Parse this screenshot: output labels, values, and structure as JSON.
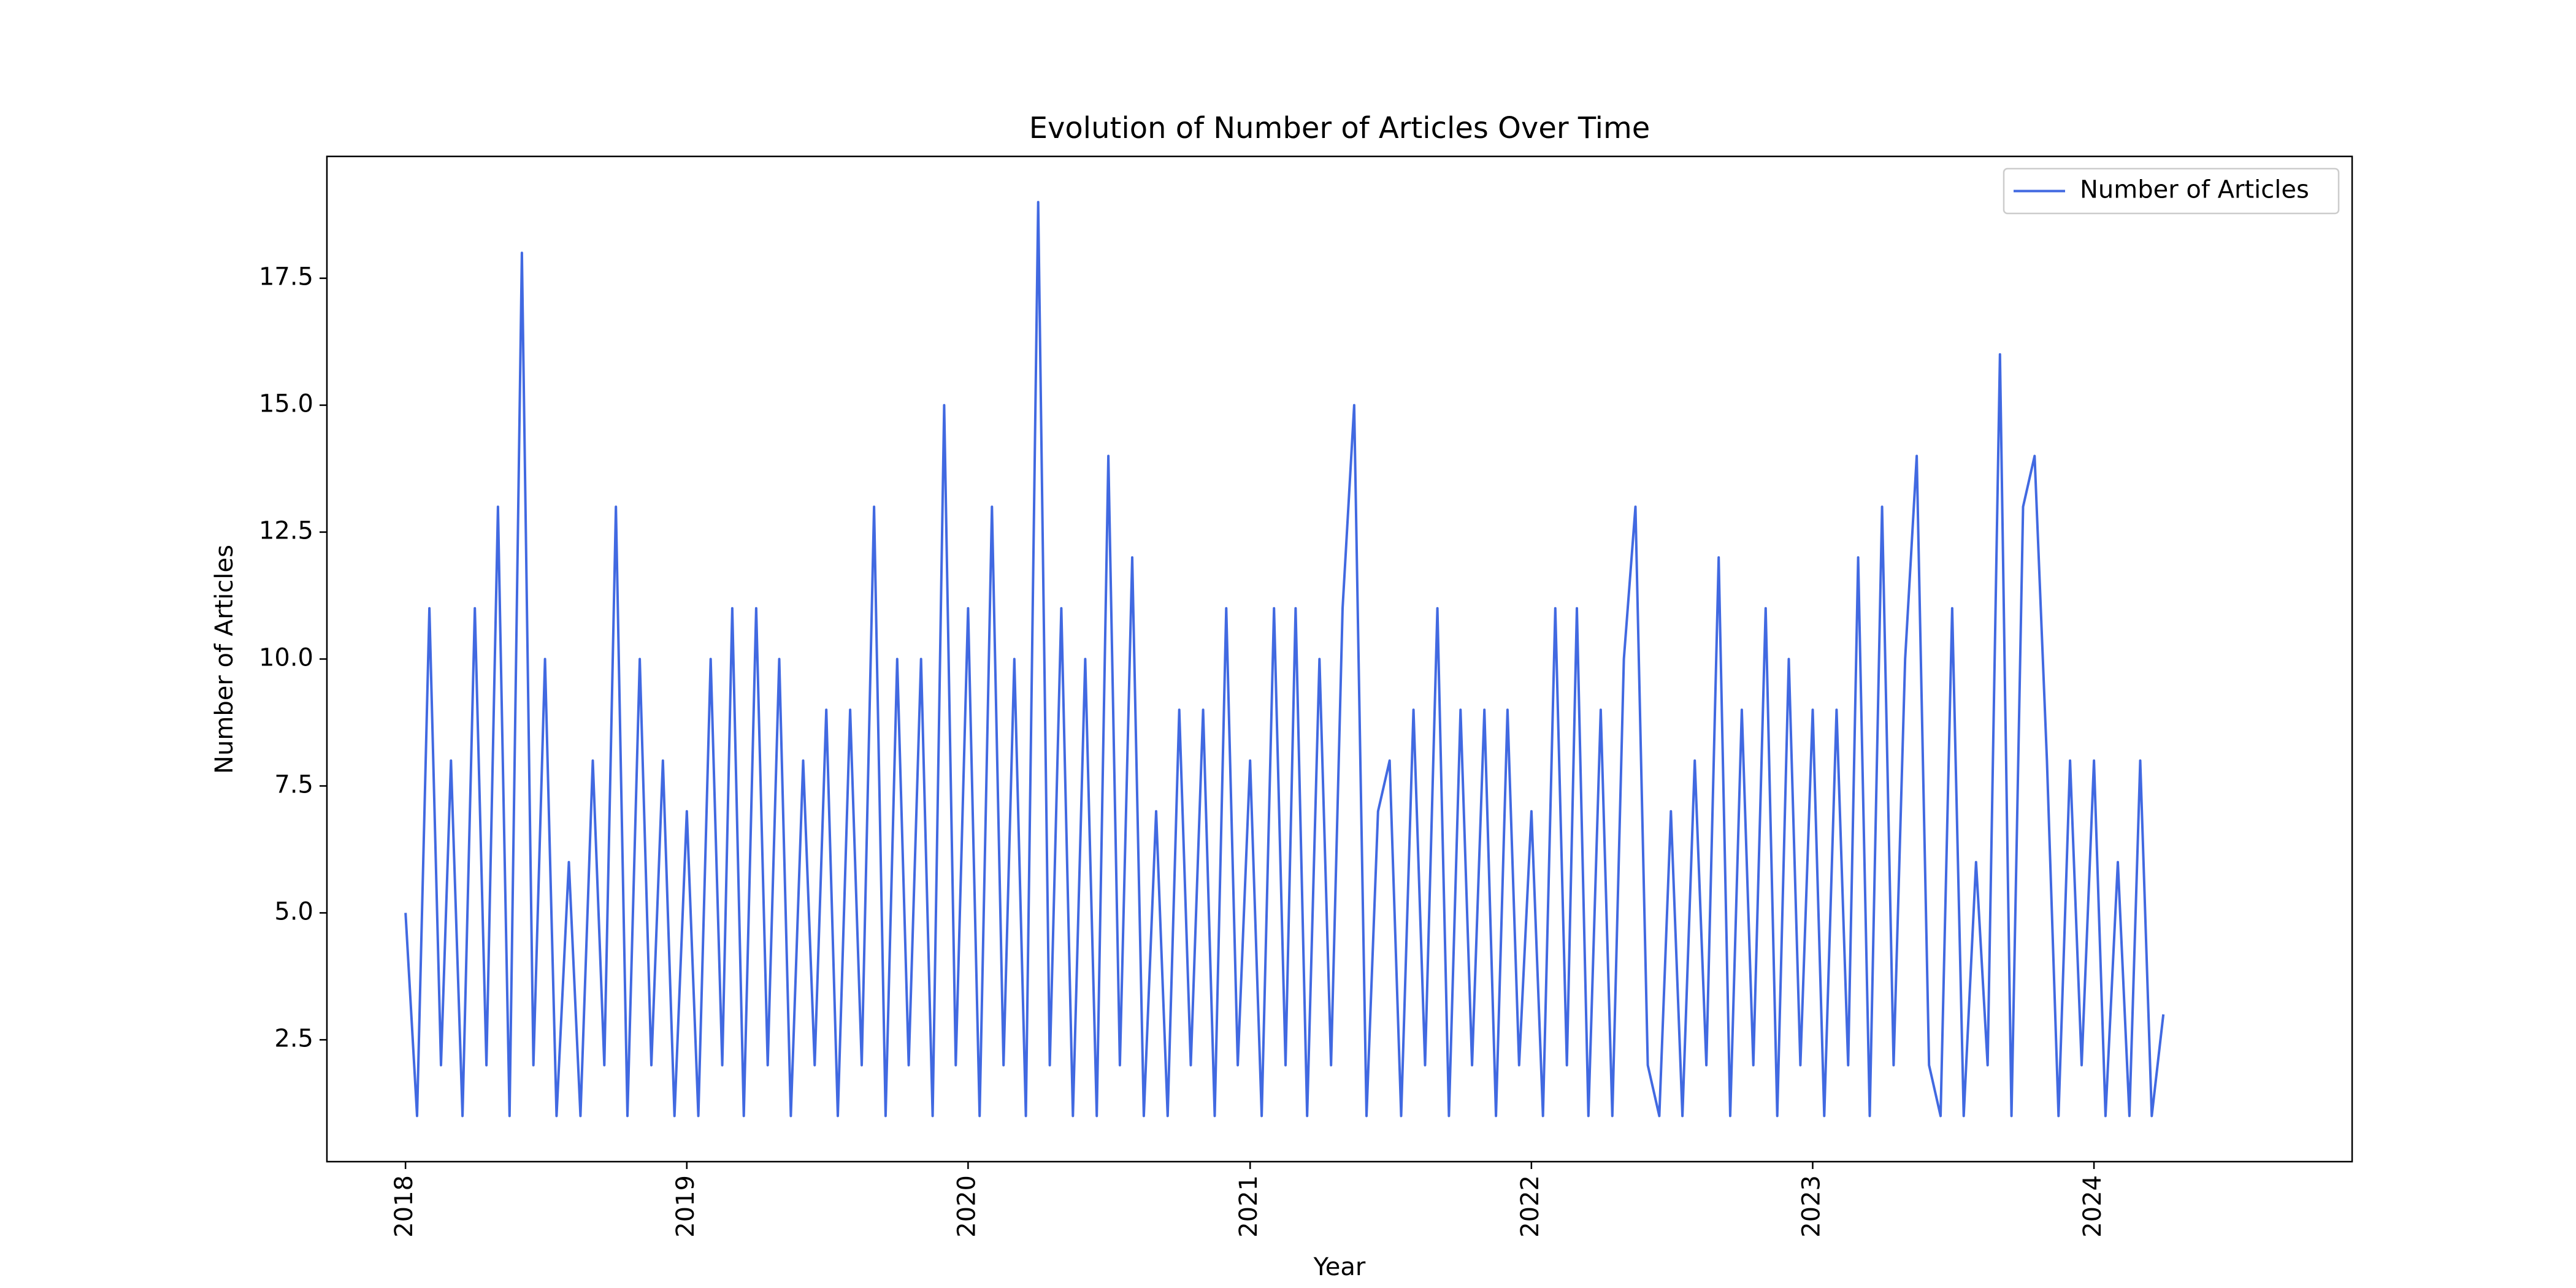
{
  "chart_data": {
    "type": "line",
    "title": "Evolution of Number of Articles Over Time",
    "x_label": "Year",
    "y_label": "Number of Articles",
    "x": [
      "2018-01-01",
      "2018-01-16",
      "2018-02-01",
      "2018-02-16",
      "2018-03-01",
      "2018-03-16",
      "2018-04-01",
      "2018-04-16",
      "2018-05-01",
      "2018-05-16",
      "2018-06-01",
      "2018-06-16",
      "2018-07-01",
      "2018-07-16",
      "2018-08-01",
      "2018-08-16",
      "2018-09-01",
      "2018-09-16",
      "2018-10-01",
      "2018-10-16",
      "2018-11-01",
      "2018-11-16",
      "2018-12-01",
      "2018-12-16",
      "2019-01-01",
      "2019-01-16",
      "2019-02-01",
      "2019-02-16",
      "2019-03-01",
      "2019-03-16",
      "2019-04-01",
      "2019-04-16",
      "2019-05-01",
      "2019-05-16",
      "2019-06-01",
      "2019-06-16",
      "2019-07-01",
      "2019-07-16",
      "2019-08-01",
      "2019-08-16",
      "2019-09-01",
      "2019-09-16",
      "2019-10-01",
      "2019-10-16",
      "2019-11-01",
      "2019-11-16",
      "2019-12-01",
      "2019-12-16",
      "2020-01-01",
      "2020-01-16",
      "2020-02-01",
      "2020-02-16",
      "2020-03-01",
      "2020-03-16",
      "2020-04-01",
      "2020-04-16",
      "2020-05-01",
      "2020-05-16",
      "2020-06-01",
      "2020-06-16",
      "2020-07-01",
      "2020-07-16",
      "2020-08-01",
      "2020-08-16",
      "2020-09-01",
      "2020-09-16",
      "2020-10-01",
      "2020-10-16",
      "2020-11-01",
      "2020-11-16",
      "2020-12-01",
      "2020-12-16",
      "2021-01-01",
      "2021-01-16",
      "2021-02-01",
      "2021-02-16",
      "2021-03-01",
      "2021-03-16",
      "2021-04-01",
      "2021-04-16",
      "2021-05-01",
      "2021-05-16",
      "2021-06-01",
      "2021-06-16",
      "2021-07-01",
      "2021-07-16",
      "2021-08-01",
      "2021-08-16",
      "2021-09-01",
      "2021-09-16",
      "2021-10-01",
      "2021-10-16",
      "2021-11-01",
      "2021-11-16",
      "2021-12-01",
      "2021-12-16",
      "2022-01-01",
      "2022-01-16",
      "2022-02-01",
      "2022-02-16",
      "2022-03-01",
      "2022-03-16",
      "2022-04-01",
      "2022-04-16",
      "2022-05-01",
      "2022-05-16",
      "2022-06-01",
      "2022-06-16",
      "2022-07-01",
      "2022-07-16",
      "2022-08-01",
      "2022-08-16",
      "2022-09-01",
      "2022-09-16",
      "2022-10-01",
      "2022-10-16",
      "2022-11-01",
      "2022-11-16",
      "2022-12-01",
      "2022-12-16",
      "2023-01-01",
      "2023-01-16",
      "2023-02-01",
      "2023-02-16",
      "2023-03-01",
      "2023-03-16",
      "2023-04-01",
      "2023-04-16",
      "2023-05-01",
      "2023-05-16",
      "2023-06-01",
      "2023-06-16",
      "2023-07-01",
      "2023-07-16",
      "2023-08-01",
      "2023-08-16",
      "2023-09-01",
      "2023-09-16",
      "2023-10-01",
      "2023-10-16",
      "2023-11-01",
      "2023-11-16",
      "2023-12-01",
      "2023-12-16",
      "2024-01-01",
      "2024-01-16",
      "2024-02-01",
      "2024-02-16",
      "2024-03-01",
      "2024-03-16",
      "2024-03-31"
    ],
    "series": [
      {
        "name": "Number of Articles",
        "color": "#4169e1",
        "values": [
          5,
          1,
          11,
          2,
          8,
          1,
          11,
          2,
          13,
          1,
          18,
          2,
          10,
          1,
          6,
          1,
          8,
          2,
          13,
          1,
          10,
          2,
          8,
          1,
          7,
          1,
          10,
          2,
          11,
          1,
          11,
          2,
          10,
          1,
          8,
          2,
          9,
          1,
          9,
          2,
          13,
          1,
          10,
          2,
          10,
          1,
          15,
          2,
          11,
          1,
          13,
          2,
          10,
          1,
          19,
          2,
          11,
          1,
          10,
          1,
          14,
          2,
          12,
          1,
          7,
          1,
          9,
          2,
          9,
          1,
          11,
          2,
          8,
          1,
          11,
          2,
          11,
          1,
          10,
          2,
          11,
          15,
          1,
          7,
          8,
          1,
          9,
          2,
          11,
          1,
          9,
          2,
          9,
          1,
          9,
          2,
          7,
          1,
          11,
          2,
          11,
          1,
          9,
          1,
          10,
          13,
          2,
          1,
          7,
          1,
          8,
          2,
          12,
          1,
          9,
          2,
          11,
          1,
          10,
          2,
          9,
          1,
          9,
          2,
          12,
          1,
          13,
          2,
          10,
          14,
          2,
          1,
          11,
          1,
          6,
          2,
          16,
          1,
          13,
          14,
          8,
          1,
          8,
          2,
          8,
          1,
          6,
          1,
          8,
          1,
          3
        ]
      }
    ],
    "xlim": [
      "2017-09-21",
      "2024-12-01"
    ],
    "xticks": [
      {
        "value": "2018-01-01",
        "label": "2018"
      },
      {
        "value": "2019-01-01",
        "label": "2019"
      },
      {
        "value": "2020-01-01",
        "label": "2020"
      },
      {
        "value": "2021-01-01",
        "label": "2021"
      },
      {
        "value": "2022-01-01",
        "label": "2022"
      },
      {
        "value": "2023-01-01",
        "label": "2023"
      },
      {
        "value": "2024-01-01",
        "label": "2024"
      }
    ],
    "ylim": [
      0.1,
      19.9
    ],
    "yticks": [
      2.5,
      {
        "value": 5,
        "label": "5.0"
      },
      7.5,
      {
        "value": 10,
        "label": "10.0"
      },
      12.5,
      {
        "value": 15,
        "label": "15.0"
      },
      17.5
    ],
    "legend": "upper right",
    "grid": false
  }
}
